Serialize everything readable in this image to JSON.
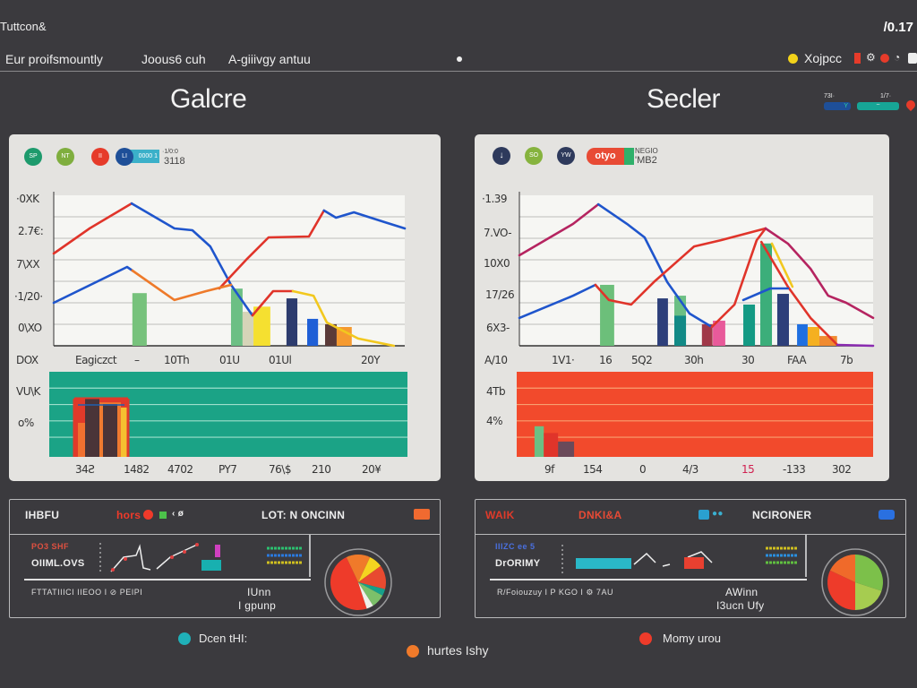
{
  "app": {
    "title": "Tuttcon&",
    "top_right_value": "/0.17"
  },
  "nav": {
    "items": [
      {
        "label": "Eur proifsmountly"
      },
      {
        "label": "Joous6 cuh"
      },
      {
        "label": "A-giiivgy antuu"
      }
    ],
    "right_label": "Xojpcc",
    "right_icons": [
      "status-dot-yellow",
      "flag-icon",
      "gear-icon",
      "alert-icon",
      "user-icon",
      "lock-icon"
    ]
  },
  "sections": [
    {
      "title": "Galcre",
      "badges": [
        {
          "text": "SP",
          "color": "#1d9a6c",
          "icon": "badge-icon"
        },
        {
          "text": "NT",
          "color": "#7fae3e",
          "icon": "badge-icon"
        },
        {
          "text": "II",
          "color": "#e63b2a",
          "icon": "badge-icon"
        },
        {
          "text": "LI",
          "color": "#1e4f98",
          "icon": "badge-icon"
        }
      ],
      "tag": {
        "text": "0000 1",
        "color": "#3bb0c9"
      },
      "tag_caption": [
        "·1/0:0",
        "3118"
      ],
      "band_color": "#1ba386"
    },
    {
      "title": "Secler",
      "badges": [
        {
          "text": "↓",
          "color": "#2e3a5c",
          "icon": "download-icon"
        },
        {
          "text": "SO",
          "color": "#86b33e",
          "icon": "badge-icon"
        },
        {
          "text": "YW",
          "color": "#2e3a5c",
          "icon": "badge-icon"
        }
      ],
      "tag": {
        "text": "otyo",
        "color": "#e84b35"
      },
      "tag_caption": [
        "NEGIO",
        "'MB2"
      ],
      "header_tags": [
        {
          "label": "73I·",
          "value": "Y"
        },
        {
          "label": "1/7·",
          "value": "~"
        }
      ],
      "band_color": "#f24a2c"
    }
  ],
  "chart_data": [
    {
      "type": "line",
      "xlim": [
        0,
        100
      ],
      "ylim": [
        0,
        100
      ],
      "grid": true,
      "yticks": [
        "·0XK",
        "2.7€:",
        "7\\XX",
        "·1/20·",
        "0\\XO"
      ],
      "xticks_origin": "DOX",
      "xticks": [
        "Eagiczct",
        "–",
        "10Th",
        "01U",
        "01Ul",
        "20Y"
      ],
      "series": [
        {
          "color": "#e0342a",
          "x": [
            0,
            10.2,
            22.2
          ],
          "y": [
            61.3,
            78,
            94.6
          ]
        },
        {
          "color": "#1f55cc",
          "x": [
            22.2,
            34.4,
            39.5,
            44.6,
            50.5,
            56.6
          ],
          "y": [
            94.6,
            78,
            76.8,
            66,
            40.5,
            20.2
          ]
        },
        {
          "color": "#e0342a",
          "x": [
            47.2,
            54.8,
            61.2,
            72.7,
            77
          ],
          "y": [
            38.1,
            57.1,
            72,
            72.6,
            89.9
          ]
        },
        {
          "color": "#1f55cc",
          "x": [
            77,
            80.4,
            85.5,
            94.4,
            100
          ],
          "y": [
            89.9,
            85.1,
            88.7,
            82.1,
            78
          ]
        },
        {
          "color": "#1f55cc",
          "x": [
            0,
            20.9,
            22.4
          ],
          "y": [
            28.6,
            52.4,
            50
          ]
        },
        {
          "color": "#ee7a2a",
          "x": [
            22.4,
            34.4,
            43.4,
            50.5
          ],
          "y": [
            50,
            30.4,
            36.3,
            40.5
          ]
        },
        {
          "color": "#e0342a",
          "x": [
            56.6,
            62.5,
            68.1
          ],
          "y": [
            20.2,
            36.3,
            36.3
          ]
        },
        {
          "color": "#f2c81e",
          "x": [
            68.1,
            74,
            77.8,
            86.7,
            96.9
          ],
          "y": [
            36.3,
            33.3,
            15.5,
            4.8,
            0
          ]
        }
      ],
      "bars": [
        {
          "x": 22.4,
          "w": 4.1,
          "value": 35,
          "color": "#77c27c"
        },
        {
          "x": 50.5,
          "w": 3.3,
          "value": 38,
          "color": "#6cbf84"
        },
        {
          "x": 53.8,
          "w": 3.1,
          "value": 22.6,
          "color": "#d6d4b8"
        },
        {
          "x": 56.9,
          "w": 4.8,
          "value": 26,
          "color": "#f5e030"
        },
        {
          "x": 66.3,
          "w": 3.1,
          "value": 31.5,
          "color": "#2d3c6e"
        },
        {
          "x": 72.2,
          "w": 3.1,
          "value": 17.9,
          "color": "#1f5fd6"
        },
        {
          "x": 77.3,
          "w": 3.3,
          "value": 14.3,
          "color": "#5a3a38"
        },
        {
          "x": 80.6,
          "w": 4.3,
          "value": 12.5,
          "color": "#f59a30"
        }
      ],
      "band": {
        "yticks": [
          "VU\\K",
          "o%"
        ],
        "xticks": [
          "34Ƨ",
          "1482",
          "4702",
          "PY7",
          "76\\$",
          "210",
          "20¥"
        ],
        "bars": [
          {
            "x": 7,
            "w": 15,
            "value": 70,
            "color": "#e03a2a"
          },
          {
            "x": 8,
            "w": 5,
            "value": 40,
            "color": "#f07030"
          },
          {
            "x": 10,
            "w": 4,
            "value": 68,
            "color": "#4a3438"
          },
          {
            "x": 14,
            "w": 6,
            "value": 64,
            "color": "#f07a30"
          },
          {
            "x": 15,
            "w": 4,
            "value": 62,
            "color": "#4a3438"
          },
          {
            "x": 20,
            "w": 2,
            "value": 58,
            "color": "#f5c030"
          }
        ]
      }
    },
    {
      "type": "line",
      "xlim": [
        0,
        100
      ],
      "ylim": [
        0,
        100
      ],
      "grid": true,
      "yticks": [
        "·1.39",
        "7.VO-",
        "10X0",
        "17/26",
        "6X3-"
      ],
      "xticks_origin": "A/10",
      "xticks": [
        "1V1·",
        "16",
        "5Q2",
        "30h",
        "30",
        "FAA",
        "7b"
      ],
      "series": [
        {
          "color": "#b52460",
          "x": [
            0,
            15.2,
            22.3
          ],
          "y": [
            60.1,
            81,
            94
          ]
        },
        {
          "color": "#1f55cc",
          "x": [
            22.3,
            30.4,
            35.4,
            41.8,
            48.1,
            54.4
          ],
          "y": [
            94,
            81,
            72,
            42.3,
            21.4,
            12.5
          ]
        },
        {
          "color": "#1f55cc",
          "x": [
            0,
            15.2,
            21.5
          ],
          "y": [
            18.5,
            33.3,
            40.5
          ]
        },
        {
          "color": "#e0342a",
          "x": [
            21.5,
            25.3,
            31.6,
            38,
            49.4,
            57,
            69.6
          ],
          "y": [
            40.5,
            30.4,
            27.4,
            42.3,
            66,
            70.2,
            78
          ]
        },
        {
          "color": "#e0342a",
          "x": [
            54.4,
            60.8,
            67.1,
            69.6
          ],
          "y": [
            12.5,
            27.4,
            70.2,
            78
          ]
        },
        {
          "color": "#b52460",
          "x": [
            69.6,
            75.9,
            82.3,
            87.3,
            92.4,
            100
          ],
          "y": [
            78,
            67.9,
            51.2,
            33.3,
            28.6,
            18.5
          ]
        },
        {
          "color": "#e0342a",
          "x": [
            68.4,
            75.9,
            82.3,
            89.9
          ],
          "y": [
            69,
            39.3,
            18.5,
            0.6
          ]
        },
        {
          "color": "#1f55cc",
          "x": [
            63.3,
            70.9,
            75.9
          ],
          "y": [
            30.4,
            38.1,
            38.1
          ]
        },
        {
          "color": "#8a2cb0",
          "x": [
            89.9,
            100
          ],
          "y": [
            0.6,
            0
          ]
        },
        {
          "color": "#f2c81e",
          "x": [
            71.4,
            77.2
          ],
          "y": [
            67.9,
            39.3
          ]
        }
      ],
      "bars": [
        {
          "x": 22.8,
          "w": 4,
          "value": 40.5,
          "color": "#6cbf7a"
        },
        {
          "x": 39,
          "w": 3,
          "value": 31.5,
          "color": "#2d3f7a"
        },
        {
          "x": 43.8,
          "w": 3.3,
          "value": 33.3,
          "color": "#6cbf84"
        },
        {
          "x": 43.8,
          "w": 3.3,
          "value": 20,
          "color": "#128a86"
        },
        {
          "x": 51.6,
          "w": 3,
          "value": 14.3,
          "color": "#a03848"
        },
        {
          "x": 54.7,
          "w": 3.5,
          "value": 16.7,
          "color": "#e85a9a"
        },
        {
          "x": 63.3,
          "w": 3.3,
          "value": 27.4,
          "color": "#149a84"
        },
        {
          "x": 68.1,
          "w": 3.3,
          "value": 68,
          "color": "#3cae7a"
        },
        {
          "x": 72.9,
          "w": 3.3,
          "value": 34.5,
          "color": "#2d3f7a"
        },
        {
          "x": 78.5,
          "w": 3,
          "value": 14.3,
          "color": "#1f6fe0"
        },
        {
          "x": 81.5,
          "w": 3.3,
          "value": 12.5,
          "color": "#f5b020"
        },
        {
          "x": 84.8,
          "w": 5,
          "value": 6.5,
          "color": "#f08a30"
        }
      ],
      "band": {
        "yticks": [
          "4Tb",
          "4%"
        ],
        "xticks": [
          "9f",
          "154",
          "0",
          "4/3",
          "15",
          "-133",
          "302"
        ],
        "marker": "+",
        "bars": [
          {
            "x": 5,
            "w": 2.6,
            "value": 36,
            "color": "#6cbf84"
          },
          {
            "x": 7.6,
            "w": 4,
            "value": 28,
            "color": "#e0342a"
          },
          {
            "x": 11.6,
            "w": 4.5,
            "value": 18,
            "color": "#6a4a5a"
          }
        ]
      }
    }
  ],
  "bottom_panels": [
    {
      "header": {
        "left": "IHBFU",
        "tag": "hors",
        "mid": "LOT: N ONCINN",
        "icon": "chart-icon"
      },
      "sub": {
        "line1": "PO3 SHF",
        "line2": "OIIML.OVS"
      },
      "footer_left": "FTTATIIICI  IIEOO  I  ⊘ PEIPI",
      "footer_mid": [
        "IUnn",
        "I gpunp"
      ],
      "pie": [
        {
          "value": 48,
          "color": "#ee3b2a"
        },
        {
          "value": 14,
          "color": "#f07a2a"
        },
        {
          "value": 8,
          "color": "#f5d420"
        },
        {
          "value": 14,
          "color": "#e84a30"
        },
        {
          "value": 4,
          "color": "#17a08a"
        },
        {
          "value": 8,
          "color": "#7cc06a"
        },
        {
          "value": 4,
          "color": "#f0f0ea"
        }
      ]
    },
    {
      "header": {
        "left": "WAIK",
        "tag": "DNKI&A",
        "mid": "NCIRONER",
        "icon": "battery-icon"
      },
      "sub": {
        "line1": "IIIZC ee 5",
        "line2": "DrORIMY"
      },
      "footer_left": "R/Foiouzuy  I P KGO  I  ⚙ 7AU",
      "footer_mid": [
        "AWinn",
        "I3ucn Ufy"
      ],
      "pie": [
        {
          "value": 30,
          "color": "#7cc04a"
        },
        {
          "value": 20,
          "color": "#a6cc50"
        },
        {
          "value": 32,
          "color": "#ee3b2a"
        },
        {
          "value": 18,
          "color": "#f06a2a"
        }
      ]
    }
  ],
  "legend": [
    {
      "label": "Dcen tHI:",
      "color": "#1fb0b8"
    },
    {
      "label": "hurtes Ishy",
      "color": "#f07a2a"
    },
    {
      "label": "Momy urou",
      "color": "#ee3b2a"
    }
  ]
}
